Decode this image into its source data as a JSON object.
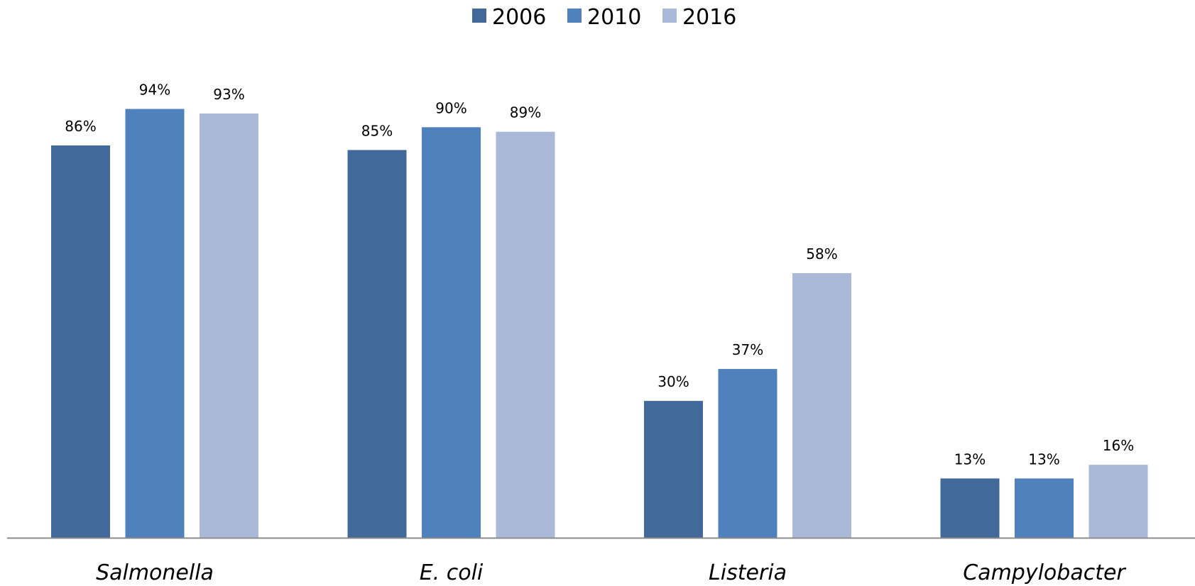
{
  "chart_data": {
    "type": "bar",
    "title": "",
    "xlabel": "",
    "ylabel": "",
    "ylim": [
      0,
      100
    ],
    "grid": false,
    "legend_position": "top-center",
    "categories": [
      "Salmonella",
      "E. coli",
      "Listeria",
      "Campylobacter"
    ],
    "series": [
      {
        "name": "2006",
        "color": "#41699A",
        "values": [
          86,
          85,
          30,
          13
        ],
        "labels": [
          "86%",
          "85%",
          "30%",
          "13%"
        ]
      },
      {
        "name": "2010",
        "color": "#4F81BD",
        "values": [
          94,
          90,
          37,
          13
        ],
        "labels": [
          "94%",
          "90%",
          "37%",
          "13%"
        ]
      },
      {
        "name": "2016",
        "color": "#AAB9D7",
        "values": [
          93,
          89,
          58,
          16
        ],
        "labels": [
          "93%",
          "89%",
          "58%",
          "16%"
        ]
      }
    ],
    "axis_color": "#8C8C8C"
  }
}
